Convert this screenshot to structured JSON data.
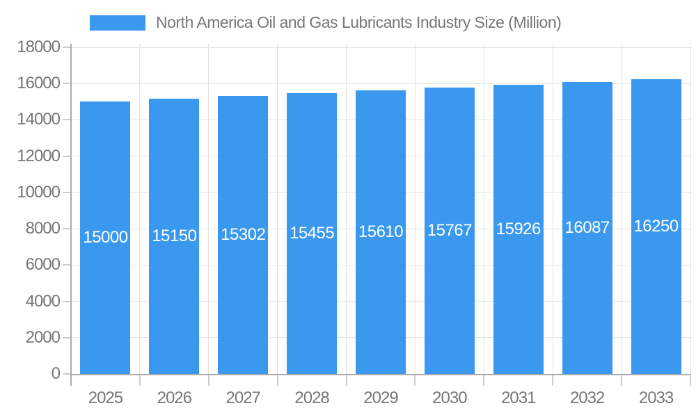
{
  "chart_data": {
    "type": "bar",
    "title": "North America Oil and Gas Lubricants Industry Size (Million)",
    "categories": [
      "2025",
      "2026",
      "2027",
      "2028",
      "2029",
      "2030",
      "2031",
      "2032",
      "2033"
    ],
    "series": [
      {
        "name": "North America Oil and Gas Lubricants Industry Size (Million)",
        "values": [
          15000,
          15150,
          15302,
          15455,
          15610,
          15767,
          15926,
          16087,
          16250
        ]
      }
    ],
    "xlabel": "",
    "ylabel": "",
    "ylim": [
      0,
      18000
    ],
    "y_ticks": [
      0,
      2000,
      4000,
      6000,
      8000,
      10000,
      12000,
      14000,
      16000,
      18000
    ],
    "grid": true,
    "legend_position": "top",
    "value_label_position": "inside-center",
    "colors": {
      "bar": "#3a99ef",
      "value_label": "#ffffff",
      "axis_text": "#777777",
      "grid_line": "#e2e2e2",
      "tick": "#cccccc",
      "axis_line": "#ababab"
    }
  }
}
